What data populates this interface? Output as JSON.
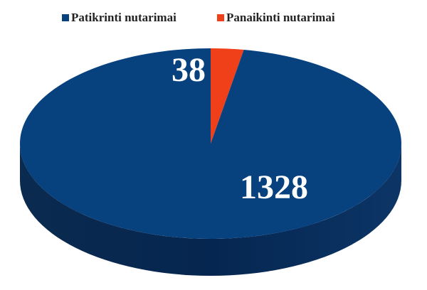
{
  "chart_data": {
    "type": "pie",
    "categories": [
      "Panaikinti nutarimai",
      "Patikrinti nutarimai"
    ],
    "values": [
      38,
      1328
    ],
    "colors": [
      "#f0401a",
      "#07427f"
    ],
    "legend": "top"
  }
}
